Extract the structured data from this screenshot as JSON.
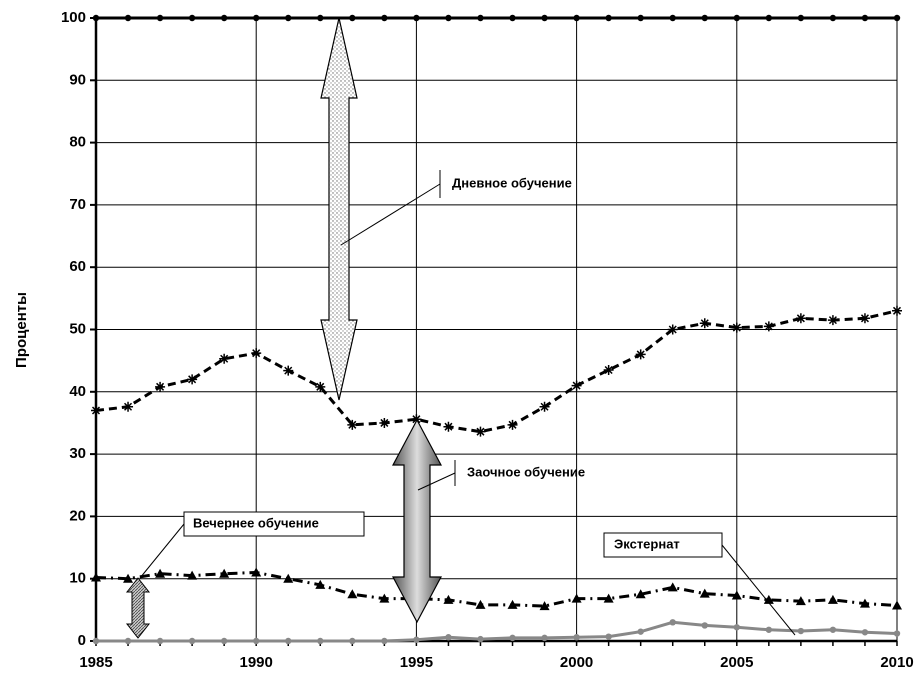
{
  "chart_data": {
    "type": "line",
    "y_label": "Проценты",
    "x": [
      1985,
      1986,
      1987,
      1988,
      1989,
      1990,
      1991,
      1992,
      1993,
      1994,
      1995,
      1996,
      1997,
      1998,
      1999,
      2000,
      2001,
      2002,
      2003,
      2004,
      2005,
      2006,
      2007,
      2008,
      2009,
      2010
    ],
    "series": [
      {
        "color": "#000000",
        "marker": "circle",
        "dash": "solid",
        "values": [
          100,
          100,
          100,
          100,
          100,
          100,
          100,
          100,
          100,
          100,
          100,
          100,
          100,
          100,
          100,
          100,
          100,
          100,
          100,
          100,
          100,
          100,
          100,
          100,
          100,
          100
        ]
      },
      {
        "color": "#000000",
        "marker": "star",
        "dash": "dashed",
        "values": [
          37,
          37.6,
          40.8,
          42,
          45.3,
          46.2,
          43.4,
          40.8,
          34.7,
          35,
          35.6,
          34.4,
          33.6,
          34.7,
          37.6,
          41,
          43.5,
          46,
          50,
          51,
          50.3,
          50.5,
          51.8,
          51.5,
          51.8,
          53
        ]
      },
      {
        "color": "#000000",
        "marker": "triangle",
        "dash": "dashdot",
        "values": [
          10.2,
          10,
          10.8,
          10.5,
          10.8,
          11,
          10,
          9,
          7.5,
          6.8,
          6.8,
          6.6,
          5.8,
          5.8,
          5.6,
          6.8,
          6.8,
          7.5,
          8.6,
          7.6,
          7.3,
          6.6,
          6.4,
          6.6,
          6,
          5.7
        ]
      },
      {
        "color": "#888888",
        "marker": "circle",
        "dash": "solid",
        "values": [
          0,
          0,
          0,
          0,
          0,
          0,
          0,
          0,
          0,
          0,
          0.2,
          0.6,
          0.3,
          0.5,
          0.5,
          0.6,
          0.7,
          1.5,
          3,
          2.5,
          2.2,
          1.8,
          1.6,
          1.8,
          1.4,
          1.2
        ]
      }
    ],
    "annotations": [
      "Дневное обучение",
      "Заочное обучение",
      "Вечернее обучение",
      "Экстернат"
    ],
    "xlim": [
      1985,
      2010
    ],
    "xticks": [
      1985,
      1990,
      1995,
      2000,
      2005,
      2010
    ],
    "ylim": [
      0,
      100
    ],
    "yticks": [
      0,
      10,
      20,
      30,
      40,
      50,
      60,
      70,
      80,
      90,
      100
    ],
    "grid": true
  }
}
